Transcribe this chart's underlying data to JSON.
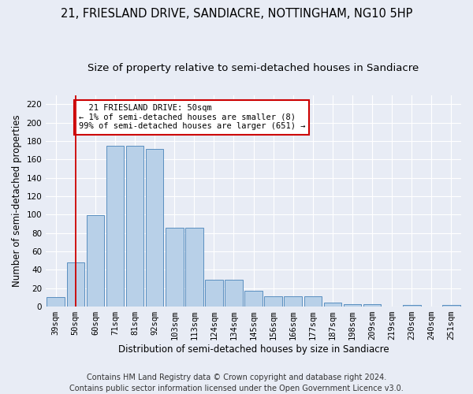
{
  "title": "21, FRIESLAND DRIVE, SANDIACRE, NOTTINGHAM, NG10 5HP",
  "subtitle": "Size of property relative to semi-detached houses in Sandiacre",
  "xlabel": "Distribution of semi-detached houses by size in Sandiacre",
  "ylabel": "Number of semi-detached properties",
  "footer": "Contains HM Land Registry data © Crown copyright and database right 2024.\nContains public sector information licensed under the Open Government Licence v3.0.",
  "categories": [
    "39sqm",
    "50sqm",
    "60sqm",
    "71sqm",
    "81sqm",
    "92sqm",
    "103sqm",
    "113sqm",
    "124sqm",
    "134sqm",
    "145sqm",
    "156sqm",
    "166sqm",
    "177sqm",
    "187sqm",
    "198sqm",
    "209sqm",
    "219sqm",
    "230sqm",
    "240sqm",
    "251sqm"
  ],
  "values": [
    10,
    48,
    99,
    175,
    175,
    171,
    86,
    86,
    29,
    29,
    17,
    11,
    11,
    11,
    4,
    3,
    3,
    0,
    2,
    0,
    2
  ],
  "bar_color": "#b8d0e8",
  "bar_edge_color": "#5a8fc0",
  "highlight_index": 1,
  "highlight_color": "#cc0000",
  "annotation_text": "  21 FRIESLAND DRIVE: 50sqm\n← 1% of semi-detached houses are smaller (8)\n99% of semi-detached houses are larger (651) →",
  "annotation_box_color": "#ffffff",
  "annotation_box_edge": "#cc0000",
  "ylim": [
    0,
    230
  ],
  "yticks": [
    0,
    20,
    40,
    60,
    80,
    100,
    120,
    140,
    160,
    180,
    200,
    220
  ],
  "background_color": "#e8ecf5",
  "grid_color": "#ffffff",
  "title_fontsize": 10.5,
  "subtitle_fontsize": 9.5,
  "axis_label_fontsize": 8.5,
  "tick_fontsize": 7.5,
  "footer_fontsize": 7.0
}
